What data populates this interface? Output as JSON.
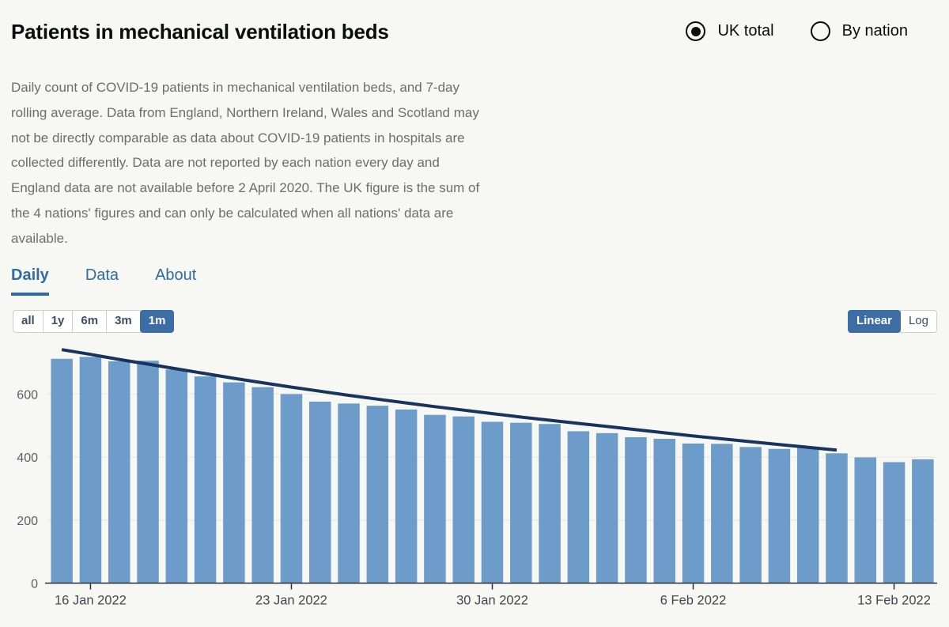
{
  "header": {
    "title": "Patients in mechanical ventilation beds",
    "radios": [
      {
        "label": "UK total",
        "selected": true
      },
      {
        "label": "By nation",
        "selected": false
      }
    ]
  },
  "description": "Daily count of COVID-19 patients in mechanical ventilation beds, and 7-day rolling average. Data from England, Northern Ireland, Wales and Scotland may not be directly comparable as data about COVID-19 patients in hospitals are collected differently. Data are not reported by each nation every day and England data are not available before 2 April 2020. The UK figure is the sum of the 4 nations' figures and can only be calculated when all nations' data are available.",
  "tabs": [
    {
      "label": "Daily",
      "active": true
    },
    {
      "label": "Data",
      "active": false
    },
    {
      "label": "About",
      "active": false
    }
  ],
  "range_buttons": [
    {
      "label": "all",
      "selected": false
    },
    {
      "label": "1y",
      "selected": false
    },
    {
      "label": "6m",
      "selected": false
    },
    {
      "label": "3m",
      "selected": false
    },
    {
      "label": "1m",
      "selected": true
    }
  ],
  "scale_buttons": [
    {
      "label": "Linear",
      "selected": true
    },
    {
      "label": "Log",
      "selected": false
    }
  ],
  "colors": {
    "bar": "#6d9cca",
    "line": "#18335d",
    "accent_blue": "#3d6da5",
    "tab_blue": "#2f6ba3",
    "grid": "#e8e8e5",
    "axis": "#2b2e33",
    "x_label": "#44484d",
    "y_label": "#5b6066"
  },
  "chart_data": {
    "type": "bar",
    "title": "Patients in mechanical ventilation beds (UK total, 1m, linear)",
    "xlabel": "",
    "ylabel": "",
    "ylim": [
      0,
      760
    ],
    "yticks": [
      0,
      200,
      400,
      600
    ],
    "grid": true,
    "legend_position": "none",
    "categories": [
      "15 Jan 2022",
      "16 Jan 2022",
      "17 Jan 2022",
      "18 Jan 2022",
      "19 Jan 2022",
      "20 Jan 2022",
      "21 Jan 2022",
      "22 Jan 2022",
      "23 Jan 2022",
      "24 Jan 2022",
      "25 Jan 2022",
      "26 Jan 2022",
      "27 Jan 2022",
      "28 Jan 2022",
      "29 Jan 2022",
      "30 Jan 2022",
      "31 Jan 2022",
      "1 Feb 2022",
      "2 Feb 2022",
      "3 Feb 2022",
      "4 Feb 2022",
      "5 Feb 2022",
      "6 Feb 2022",
      "7 Feb 2022",
      "8 Feb 2022",
      "9 Feb 2022",
      "10 Feb 2022",
      "11 Feb 2022",
      "12 Feb 2022",
      "13 Feb 2022",
      "14 Feb 2022"
    ],
    "xtick_labels": [
      "16 Jan 2022",
      "23 Jan 2022",
      "30 Jan 2022",
      "6 Feb 2022",
      "13 Feb 2022"
    ],
    "xtick_indices": [
      1,
      8,
      15,
      22,
      29
    ],
    "series": [
      {
        "name": "Daily count",
        "type": "bar",
        "values": [
          712,
          718,
          704,
          706,
          678,
          656,
          637,
          622,
          600,
          576,
          570,
          563,
          551,
          534,
          529,
          512,
          509,
          505,
          482,
          476,
          463,
          458,
          443,
          442,
          432,
          426,
          431,
          412,
          399,
          384,
          393
        ]
      },
      {
        "name": "7-day rolling average",
        "type": "line",
        "values": [
          741,
          726,
          710,
          695,
          680,
          665,
          650,
          636,
          622,
          609,
          596,
          584,
          572,
          560,
          549,
          538,
          527,
          517,
          507,
          497,
          487,
          477,
          467,
          458,
          449,
          440,
          431,
          422,
          null,
          null,
          null
        ]
      }
    ]
  }
}
